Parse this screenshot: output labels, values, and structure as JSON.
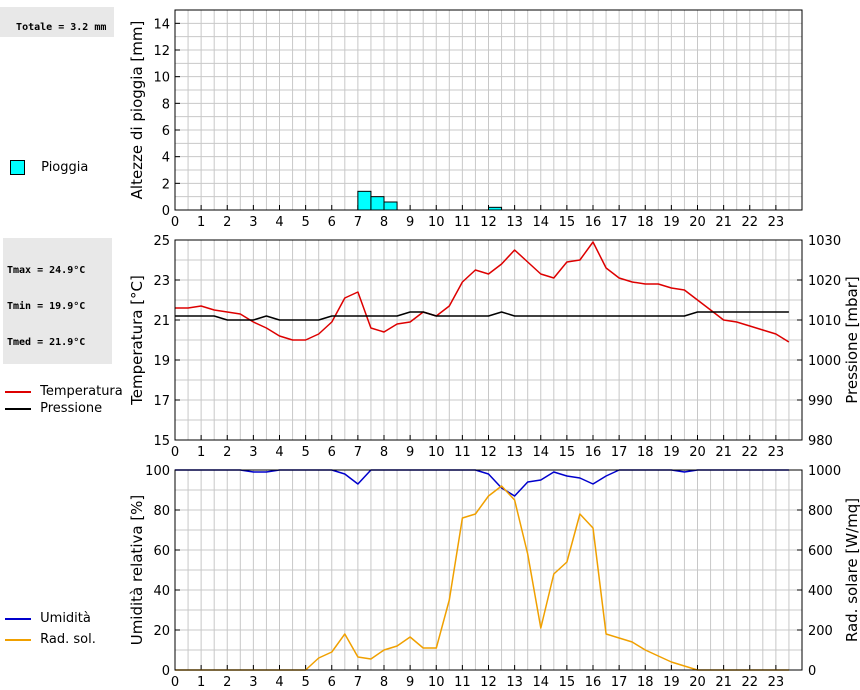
{
  "info": {
    "rain_total": "Totale = 3.2 mm",
    "tmax": "Tmax = 24.9°C",
    "tmin": "Tmin = 19.9°C",
    "tmed": "Tmed = 21.9°C"
  },
  "legend": {
    "rain": "Pioggia",
    "temperature": "Temperatura",
    "pressure": "Pressione",
    "humidity": "Umidità",
    "solar": "Rad. sol."
  },
  "colors": {
    "rain_fill": "#00ffff",
    "temperature": "#dd0000",
    "pressure": "#000000",
    "humidity": "#0000cc",
    "solar": "#f0a000",
    "grid": "#c8c8c8"
  },
  "chart_data": [
    {
      "type": "bar",
      "ylabel": "Altezze di pioggia [mm]",
      "xlim": [
        0,
        24
      ],
      "ylim": [
        0,
        15
      ],
      "x_ticks": [
        "0",
        "1",
        "2",
        "3",
        "4",
        "5",
        "6",
        "7",
        "8",
        "9",
        "10",
        "11",
        "12",
        "13",
        "14",
        "15",
        "16",
        "17",
        "18",
        "19",
        "20",
        "21",
        "22",
        "23"
      ],
      "y_ticks": [
        "0",
        "2",
        "4",
        "6",
        "8",
        "10",
        "12",
        "14"
      ],
      "bar_width_h": 0.5,
      "bars": [
        {
          "x": 7.0,
          "value": 1.4
        },
        {
          "x": 7.5,
          "value": 1.0
        },
        {
          "x": 8.0,
          "value": 0.6
        },
        {
          "x": 12.0,
          "value": 0.2
        }
      ],
      "series": [
        {
          "name": "Pioggia"
        }
      ]
    },
    {
      "type": "line",
      "ylabel": "Temperatura [°C]",
      "y2label": "Pressione [mbar]",
      "xlim": [
        0,
        24
      ],
      "ylim": [
        15,
        25
      ],
      "y2lim": [
        980,
        1030
      ],
      "x_ticks": [
        "0",
        "1",
        "2",
        "3",
        "4",
        "5",
        "6",
        "7",
        "8",
        "9",
        "10",
        "11",
        "12",
        "13",
        "14",
        "15",
        "16",
        "17",
        "18",
        "19",
        "20",
        "21",
        "22",
        "23"
      ],
      "y_ticks": [
        "15",
        "17",
        "19",
        "21",
        "23",
        "25"
      ],
      "y2_ticks": [
        "980",
        "990",
        "1000",
        "1010",
        "1020",
        "1030"
      ],
      "series": [
        {
          "name": "Temperatura",
          "axis": "left",
          "x": [
            0,
            0.5,
            1,
            1.5,
            2,
            2.5,
            3,
            3.5,
            4,
            4.5,
            5,
            5.5,
            6,
            6.5,
            7,
            7.5,
            8,
            8.5,
            9,
            9.5,
            10,
            10.5,
            11,
            11.5,
            12,
            12.5,
            13,
            13.5,
            14,
            14.5,
            15,
            15.5,
            16,
            16.5,
            17,
            17.5,
            18,
            18.5,
            19,
            19.5,
            20,
            20.5,
            21,
            21.5,
            22,
            22.5,
            23,
            23.5
          ],
          "values": [
            21.6,
            21.6,
            21.7,
            21.5,
            21.4,
            21.3,
            20.9,
            20.6,
            20.2,
            20.0,
            20.0,
            20.3,
            20.9,
            22.1,
            22.4,
            20.6,
            20.4,
            20.8,
            20.9,
            21.4,
            21.2,
            21.7,
            22.9,
            23.5,
            23.3,
            23.8,
            24.5,
            23.9,
            23.3,
            23.1,
            23.9,
            24.0,
            24.9,
            23.6,
            23.1,
            22.9,
            22.8,
            22.8,
            22.6,
            22.5,
            22.0,
            21.5,
            21.0,
            20.9,
            20.7,
            20.5,
            20.3,
            19.9
          ]
        },
        {
          "name": "Pressione",
          "axis": "right",
          "x": [
            0,
            0.5,
            1,
            1.5,
            2,
            2.5,
            3,
            3.5,
            4,
            4.5,
            5,
            5.5,
            6,
            6.5,
            7,
            7.5,
            8,
            8.5,
            9,
            9.5,
            10,
            10.5,
            11,
            11.5,
            12,
            12.5,
            13,
            13.5,
            14,
            14.5,
            15,
            15.5,
            16,
            16.5,
            17,
            17.5,
            18,
            18.5,
            19,
            19.5,
            20,
            20.5,
            21,
            21.5,
            22,
            22.5,
            23,
            23.5
          ],
          "values": [
            1011,
            1011,
            1011,
            1011,
            1010,
            1010,
            1010,
            1011,
            1010,
            1010,
            1010,
            1010,
            1011,
            1011,
            1011,
            1011,
            1011,
            1011,
            1012,
            1012,
            1011,
            1011,
            1011,
            1011,
            1011,
            1012,
            1011,
            1011,
            1011,
            1011,
            1011,
            1011,
            1011,
            1011,
            1011,
            1011,
            1011,
            1011,
            1011,
            1011,
            1012,
            1012,
            1012,
            1012,
            1012,
            1012,
            1012,
            1012
          ]
        }
      ]
    },
    {
      "type": "line",
      "ylabel": "Umidità relativa [%]",
      "y2label": "Rad. solare [W/mq]",
      "xlim": [
        0,
        24
      ],
      "ylim": [
        0,
        100
      ],
      "y2lim": [
        0,
        1000
      ],
      "x_ticks": [
        "0",
        "1",
        "2",
        "3",
        "4",
        "5",
        "6",
        "7",
        "8",
        "9",
        "10",
        "11",
        "12",
        "13",
        "14",
        "15",
        "16",
        "17",
        "18",
        "19",
        "20",
        "21",
        "22",
        "23"
      ],
      "y_ticks": [
        "0",
        "20",
        "40",
        "60",
        "80",
        "100"
      ],
      "y2_ticks": [
        "0",
        "200",
        "400",
        "600",
        "800",
        "1000"
      ],
      "series": [
        {
          "name": "Umidità",
          "axis": "left",
          "x": [
            0,
            0.5,
            1,
            1.5,
            2,
            2.5,
            3,
            3.5,
            4,
            4.5,
            5,
            5.5,
            6,
            6.5,
            7,
            7.5,
            8,
            8.5,
            9,
            9.5,
            10,
            10.5,
            11,
            11.5,
            12,
            12.5,
            13,
            13.5,
            14,
            14.5,
            15,
            15.5,
            16,
            16.5,
            17,
            17.5,
            18,
            18.5,
            19,
            19.5,
            20,
            20.5,
            21,
            21.5,
            22,
            22.5,
            23,
            23.5
          ],
          "values": [
            100,
            100,
            100,
            100,
            100,
            100,
            99,
            99,
            100,
            100,
            100,
            100,
            100,
            98,
            93,
            100,
            100,
            100,
            100,
            100,
            100,
            100,
            100,
            100,
            98,
            91,
            87,
            94,
            95,
            99,
            97,
            96,
            93,
            97,
            100,
            100,
            100,
            100,
            100,
            99,
            100,
            100,
            100,
            100,
            100,
            100,
            100,
            100
          ]
        },
        {
          "name": "Rad. sol.",
          "axis": "right",
          "x": [
            0,
            0.5,
            1,
            1.5,
            2,
            2.5,
            3,
            3.5,
            4,
            4.5,
            5,
            5.5,
            6,
            6.5,
            7,
            7.5,
            8,
            8.5,
            9,
            9.5,
            10,
            10.5,
            11,
            11.5,
            12,
            12.5,
            13,
            13.5,
            14,
            14.5,
            15,
            15.5,
            16,
            16.5,
            17,
            17.5,
            18,
            18.5,
            19,
            19.5,
            20,
            20.5,
            21,
            21.5,
            22,
            22.5,
            23,
            23.5
          ],
          "values": [
            0,
            0,
            0,
            0,
            0,
            0,
            0,
            0,
            0,
            0,
            0,
            60,
            90,
            180,
            65,
            55,
            100,
            120,
            165,
            110,
            110,
            350,
            760,
            780,
            870,
            920,
            850,
            580,
            210,
            480,
            540,
            780,
            710,
            180,
            160,
            140,
            100,
            70,
            40,
            20,
            0,
            0,
            0,
            0,
            0,
            0,
            0,
            0
          ]
        }
      ]
    }
  ]
}
